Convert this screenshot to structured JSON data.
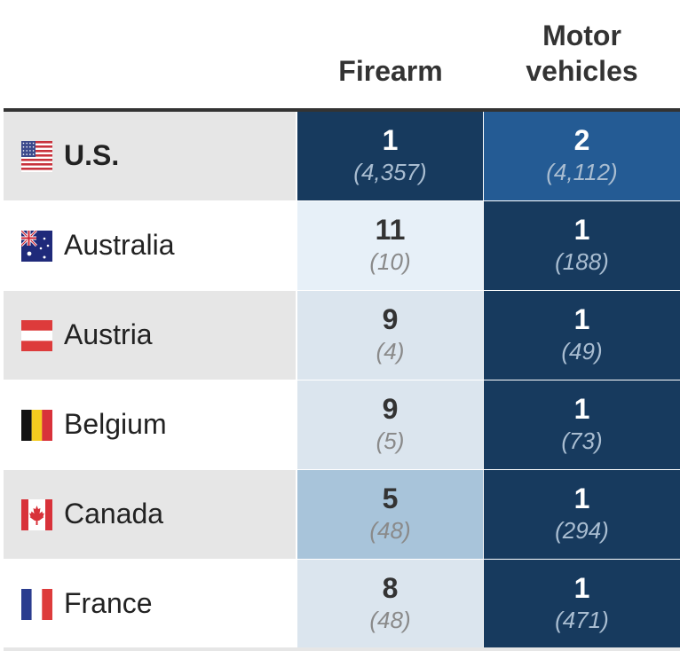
{
  "chart_data": {
    "type": "table",
    "columns": [
      "Firearm",
      "Motor vehicles"
    ],
    "motor_header_lines": [
      "Motor",
      "vehicles"
    ],
    "rows": [
      {
        "country": "U.S.",
        "flag": "flag-us-icon",
        "bold": true,
        "firearm": {
          "rank": "1",
          "count": "(4,357)"
        },
        "motor": {
          "rank": "2",
          "count": "(4,112)"
        }
      },
      {
        "country": "Australia",
        "flag": "flag-australia-icon",
        "bold": false,
        "firearm": {
          "rank": "11",
          "count": "(10)"
        },
        "motor": {
          "rank": "1",
          "count": "(188)"
        }
      },
      {
        "country": "Austria",
        "flag": "flag-austria-icon",
        "bold": false,
        "firearm": {
          "rank": "9",
          "count": "(4)"
        },
        "motor": {
          "rank": "1",
          "count": "(49)"
        }
      },
      {
        "country": "Belgium",
        "flag": "flag-belgium-icon",
        "bold": false,
        "firearm": {
          "rank": "9",
          "count": "(5)"
        },
        "motor": {
          "rank": "1",
          "count": "(73)"
        }
      },
      {
        "country": "Canada",
        "flag": "flag-canada-icon",
        "bold": false,
        "firearm": {
          "rank": "5",
          "count": "(48)"
        },
        "motor": {
          "rank": "1",
          "count": "(294)"
        }
      },
      {
        "country": "France",
        "flag": "flag-france-icon",
        "bold": false,
        "firearm": {
          "rank": "8",
          "count": "(48)"
        },
        "motor": {
          "rank": "1",
          "count": "(471)"
        }
      }
    ]
  },
  "colors": {
    "rank_1_fill": "#173a5e",
    "rank_2_fill": "#245b94",
    "rank_5_fill": "#a8c4da",
    "rank_8_9_fill": "#dbe5ee",
    "rank_11_fill": "#e7f0f8",
    "odd_row_bg": "#e6e6e6",
    "even_row_bg": "#ffffff",
    "dark_text": "#ffffff",
    "dark_count_text": "#a9bdd1",
    "light_text": "#333333",
    "light_count_text": "#8a8a8a"
  }
}
